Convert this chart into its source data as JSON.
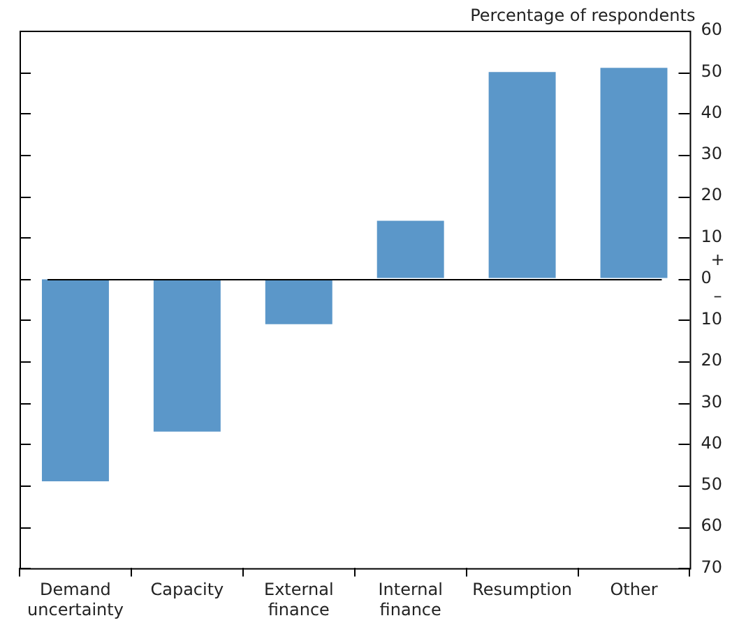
{
  "chart_data": {
    "type": "bar",
    "ylabel": "Percentage of respondents",
    "categories": [
      "Demand uncertainty",
      "Capacity",
      "External finance",
      "Internal finance",
      "Resumption",
      "Other"
    ],
    "values": [
      -49,
      -37,
      -11,
      14,
      50,
      51
    ],
    "color": "#5b97c9",
    "ylim": [
      -70,
      60
    ],
    "yticks": [
      {
        "value": -70,
        "label": "70"
      },
      {
        "value": -60,
        "label": "60"
      },
      {
        "value": -50,
        "label": "50"
      },
      {
        "value": -40,
        "label": "40"
      },
      {
        "value": -30,
        "label": "30"
      },
      {
        "value": -20,
        "label": "20"
      },
      {
        "value": -10,
        "label": "10"
      },
      0,
      10,
      20,
      30,
      40,
      50,
      60
    ],
    "ref_lines": [
      {
        "axis": "y",
        "value": 0,
        "color": "#000000"
      }
    ],
    "annotations": [
      "+",
      "–"
    ],
    "grid": false,
    "legend": false
  }
}
